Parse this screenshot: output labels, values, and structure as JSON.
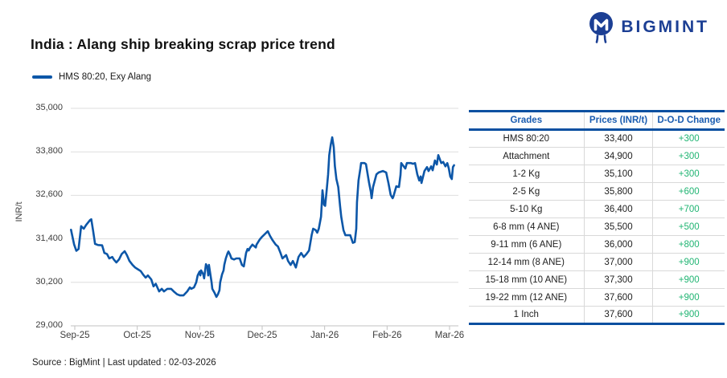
{
  "brand": {
    "name": "BIGMINT",
    "color": "#1c3f94"
  },
  "header": {
    "title": "India : Alang ship breaking scrap price trend"
  },
  "legend": {
    "label": "HMS 80:20, Exy Alang"
  },
  "chart_data": {
    "type": "line",
    "title": "India : Alang ship breaking scrap price trend",
    "xlabel": "",
    "ylabel": "INR/t",
    "ylim": [
      29000,
      35000
    ],
    "yticks": [
      35000,
      33800,
      32600,
      31400,
      30200,
      29000
    ],
    "xticks": [
      "Sep-25",
      "Oct-25",
      "Nov-25",
      "Dec-25",
      "Jan-26",
      "Feb-26",
      "Mar-26"
    ],
    "grid": true,
    "legend_position": "top-left",
    "x_unit": "fraction of Sep-25 to Mar-26 axis span",
    "series": [
      {
        "name": "HMS 80:20, Exy Alang",
        "color": "#0d57a8",
        "points": [
          [
            -0.01,
            31650
          ],
          [
            -0.002,
            31250
          ],
          [
            0.004,
            31070
          ],
          [
            0.01,
            31120
          ],
          [
            0.017,
            31750
          ],
          [
            0.024,
            31680
          ],
          [
            0.03,
            31780
          ],
          [
            0.041,
            31920
          ],
          [
            0.044,
            31940
          ],
          [
            0.049,
            31620
          ],
          [
            0.054,
            31260
          ],
          [
            0.062,
            31230
          ],
          [
            0.073,
            31220
          ],
          [
            0.079,
            31010
          ],
          [
            0.086,
            30980
          ],
          [
            0.092,
            30860
          ],
          [
            0.1,
            30900
          ],
          [
            0.104,
            30830
          ],
          [
            0.111,
            30750
          ],
          [
            0.118,
            30830
          ],
          [
            0.125,
            30980
          ],
          [
            0.133,
            31060
          ],
          [
            0.139,
            30950
          ],
          [
            0.146,
            30790
          ],
          [
            0.154,
            30680
          ],
          [
            0.161,
            30610
          ],
          [
            0.167,
            30570
          ],
          [
            0.176,
            30510
          ],
          [
            0.182,
            30420
          ],
          [
            0.189,
            30330
          ],
          [
            0.195,
            30390
          ],
          [
            0.204,
            30280
          ],
          [
            0.21,
            30090
          ],
          [
            0.216,
            30160
          ],
          [
            0.225,
            29950
          ],
          [
            0.232,
            30020
          ],
          [
            0.238,
            29950
          ],
          [
            0.247,
            30020
          ],
          [
            0.257,
            30020
          ],
          [
            0.264,
            29950
          ],
          [
            0.273,
            29870
          ],
          [
            0.281,
            29840
          ],
          [
            0.29,
            29840
          ],
          [
            0.3,
            29950
          ],
          [
            0.307,
            30060
          ],
          [
            0.311,
            30020
          ],
          [
            0.318,
            30060
          ],
          [
            0.324,
            30200
          ],
          [
            0.328,
            30390
          ],
          [
            0.333,
            30500
          ],
          [
            0.335,
            30390
          ],
          [
            0.337,
            30530
          ],
          [
            0.343,
            30420
          ],
          [
            0.345,
            30310
          ],
          [
            0.35,
            30700
          ],
          [
            0.354,
            30610
          ],
          [
            0.356,
            30390
          ],
          [
            0.358,
            30680
          ],
          [
            0.365,
            30200
          ],
          [
            0.367,
            30020
          ],
          [
            0.373,
            29910
          ],
          [
            0.378,
            29800
          ],
          [
            0.382,
            29870
          ],
          [
            0.386,
            29980
          ],
          [
            0.388,
            30200
          ],
          [
            0.393,
            30420
          ],
          [
            0.397,
            30530
          ],
          [
            0.399,
            30680
          ],
          [
            0.403,
            30860
          ],
          [
            0.408,
            31010
          ],
          [
            0.41,
            31050
          ],
          [
            0.414,
            30970
          ],
          [
            0.418,
            30860
          ],
          [
            0.425,
            30830
          ],
          [
            0.431,
            30860
          ],
          [
            0.44,
            30860
          ],
          [
            0.446,
            30680
          ],
          [
            0.451,
            30640
          ],
          [
            0.457,
            31010
          ],
          [
            0.461,
            31120
          ],
          [
            0.464,
            31080
          ],
          [
            0.468,
            31160
          ],
          [
            0.474,
            31240
          ],
          [
            0.483,
            31160
          ],
          [
            0.485,
            31240
          ],
          [
            0.494,
            31390
          ],
          [
            0.5,
            31460
          ],
          [
            0.506,
            31520
          ],
          [
            0.515,
            31610
          ],
          [
            0.521,
            31480
          ],
          [
            0.528,
            31360
          ],
          [
            0.536,
            31240
          ],
          [
            0.542,
            31190
          ],
          [
            0.549,
            31010
          ],
          [
            0.554,
            30860
          ],
          [
            0.564,
            30950
          ],
          [
            0.569,
            30790
          ],
          [
            0.576,
            30680
          ],
          [
            0.582,
            30790
          ],
          [
            0.59,
            30610
          ],
          [
            0.597,
            30900
          ],
          [
            0.604,
            31010
          ],
          [
            0.611,
            30900
          ],
          [
            0.618,
            30980
          ],
          [
            0.625,
            31080
          ],
          [
            0.632,
            31500
          ],
          [
            0.636,
            31680
          ],
          [
            0.643,
            31640
          ],
          [
            0.647,
            31570
          ],
          [
            0.651,
            31680
          ],
          [
            0.657,
            32010
          ],
          [
            0.661,
            32740
          ],
          [
            0.665,
            32340
          ],
          [
            0.668,
            32310
          ],
          [
            0.672,
            32740
          ],
          [
            0.676,
            33180
          ],
          [
            0.679,
            33710
          ],
          [
            0.683,
            34000
          ],
          [
            0.687,
            34200
          ],
          [
            0.691,
            33930
          ],
          [
            0.694,
            33410
          ],
          [
            0.698,
            33050
          ],
          [
            0.703,
            32830
          ],
          [
            0.708,
            32300
          ],
          [
            0.711,
            32010
          ],
          [
            0.717,
            31640
          ],
          [
            0.722,
            31500
          ],
          [
            0.735,
            31500
          ],
          [
            0.742,
            31290
          ],
          [
            0.747,
            31310
          ],
          [
            0.751,
            31680
          ],
          [
            0.753,
            32410
          ],
          [
            0.757,
            33010
          ],
          [
            0.762,
            33340
          ],
          [
            0.764,
            33490
          ],
          [
            0.773,
            33490
          ],
          [
            0.777,
            33460
          ],
          [
            0.785,
            32960
          ],
          [
            0.79,
            32700
          ],
          [
            0.792,
            32520
          ],
          [
            0.796,
            32830
          ],
          [
            0.805,
            33180
          ],
          [
            0.811,
            33230
          ],
          [
            0.822,
            33270
          ],
          [
            0.831,
            33230
          ],
          [
            0.837,
            32940
          ],
          [
            0.843,
            32610
          ],
          [
            0.848,
            32520
          ],
          [
            0.85,
            32560
          ],
          [
            0.858,
            32850
          ],
          [
            0.865,
            32830
          ],
          [
            0.869,
            33160
          ],
          [
            0.871,
            33490
          ],
          [
            0.882,
            33340
          ],
          [
            0.886,
            33490
          ],
          [
            0.897,
            33490
          ],
          [
            0.903,
            33470
          ],
          [
            0.908,
            33490
          ],
          [
            0.914,
            33180
          ],
          [
            0.919,
            33010
          ],
          [
            0.923,
            33120
          ],
          [
            0.925,
            32940
          ],
          [
            0.933,
            33270
          ],
          [
            0.94,
            33380
          ],
          [
            0.944,
            33270
          ],
          [
            0.951,
            33400
          ],
          [
            0.955,
            33290
          ],
          [
            0.961,
            33560
          ],
          [
            0.966,
            33450
          ],
          [
            0.97,
            33710
          ],
          [
            0.978,
            33490
          ],
          [
            0.983,
            33520
          ],
          [
            0.989,
            33400
          ],
          [
            0.994,
            33490
          ],
          [
            0.998,
            33340
          ],
          [
            1.002,
            33120
          ],
          [
            1.006,
            33050
          ],
          [
            1.009,
            33380
          ],
          [
            1.012,
            33430
          ]
        ]
      }
    ]
  },
  "table": {
    "headers": [
      "Grades",
      "Prices (INR/t)",
      "D-O-D Change"
    ],
    "accent_color": "#0a4fa0",
    "header_text_color": "#1a5cb0",
    "change_color": "#21b573",
    "rows": [
      {
        "grade": "HMS 80:20",
        "price": "33,400",
        "change": "+300"
      },
      {
        "grade": "Attachment",
        "price": "34,900",
        "change": "+300"
      },
      {
        "grade": "1-2 Kg",
        "price": "35,100",
        "change": "+300"
      },
      {
        "grade": "2-5 Kg",
        "price": "35,800",
        "change": "+600"
      },
      {
        "grade": "5-10 Kg",
        "price": "36,400",
        "change": "+700"
      },
      {
        "grade": "6-8 mm (4 ANE)",
        "price": "35,500",
        "change": "+500"
      },
      {
        "grade": "9-11 mm (6 ANE)",
        "price": "36,000",
        "change": "+800"
      },
      {
        "grade": "12-14 mm (8 ANE)",
        "price": "37,000",
        "change": "+900"
      },
      {
        "grade": "15-18 mm (10 ANE)",
        "price": "37,300",
        "change": "+900"
      },
      {
        "grade": "19-22 mm (12 ANE)",
        "price": "37,600",
        "change": "+900"
      },
      {
        "grade": "1 Inch",
        "price": "37,600",
        "change": "+900"
      }
    ]
  },
  "footer": {
    "text": "Source : BigMint | Last updated : 02-03-2026"
  }
}
